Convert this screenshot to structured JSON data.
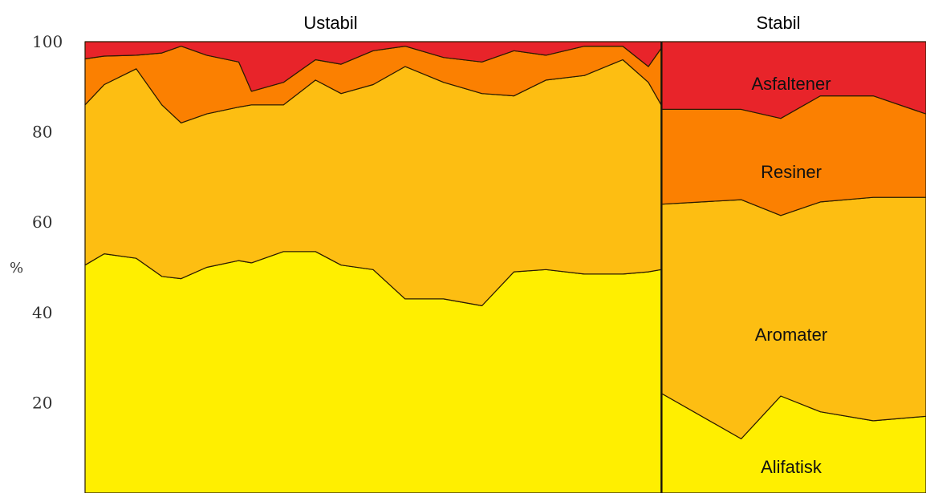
{
  "chart_data": {
    "type": "area",
    "stacked": true,
    "ylabel": "%",
    "ylim": [
      0,
      100
    ],
    "yticks": [
      20,
      40,
      60,
      80,
      100
    ],
    "groups": [
      "Ustabil",
      "Stabil"
    ],
    "series": [
      {
        "name": "Alifatisk",
        "color": "#FFEF00"
      },
      {
        "name": "Aromater",
        "color": "#FDBE12"
      },
      {
        "name": "Resiner",
        "color": "#FB8001"
      },
      {
        "name": "Asfaltener",
        "color": "#E8242A"
      }
    ],
    "data": [
      {
        "group": "Ustabil",
        "x": 0,
        "Alifatisk": 50.5,
        "Aromater": 35.5,
        "Resiner": 10.2,
        "Asfaltener": 3.8
      },
      {
        "group": "Ustabil",
        "x": 0.03,
        "Alifatisk": 53.0,
        "Aromater": 37.5,
        "Resiner": 6.3,
        "Asfaltener": 3.2
      },
      {
        "group": "Ustabil",
        "x": 0.08,
        "Alifatisk": 52.0,
        "Aromater": 42.0,
        "Resiner": 3.0,
        "Asfaltener": 3.0
      },
      {
        "group": "Ustabil",
        "x": 0.12,
        "Alifatisk": 48.0,
        "Aromater": 38.0,
        "Resiner": 11.5,
        "Asfaltener": 2.5
      },
      {
        "group": "Ustabil",
        "x": 0.15,
        "Alifatisk": 47.5,
        "Aromater": 34.5,
        "Resiner": 17.0,
        "Asfaltener": 1.0
      },
      {
        "group": "Ustabil",
        "x": 0.19,
        "Alifatisk": 50.0,
        "Aromater": 34.0,
        "Resiner": 13.0,
        "Asfaltener": 3.0
      },
      {
        "group": "Ustabil",
        "x": 0.24,
        "Alifatisk": 51.5,
        "Aromater": 34.0,
        "Resiner": 10.0,
        "Asfaltener": 4.5
      },
      {
        "group": "Ustabil",
        "x": 0.26,
        "Alifatisk": 51.0,
        "Aromater": 35.0,
        "Resiner": 3.0,
        "Asfaltener": 11.0
      },
      {
        "group": "Ustabil",
        "x": 0.31,
        "Alifatisk": 53.5,
        "Aromater": 32.5,
        "Resiner": 5.0,
        "Asfaltener": 9.0
      },
      {
        "group": "Ustabil",
        "x": 0.36,
        "Alifatisk": 53.5,
        "Aromater": 38.0,
        "Resiner": 4.5,
        "Asfaltener": 4.0
      },
      {
        "group": "Ustabil",
        "x": 0.4,
        "Alifatisk": 50.5,
        "Aromater": 38.0,
        "Resiner": 6.5,
        "Asfaltener": 5.0
      },
      {
        "group": "Ustabil",
        "x": 0.45,
        "Alifatisk": 49.5,
        "Aromater": 41.0,
        "Resiner": 7.5,
        "Asfaltener": 2.0
      },
      {
        "group": "Ustabil",
        "x": 0.5,
        "Alifatisk": 43.0,
        "Aromater": 51.5,
        "Resiner": 4.5,
        "Asfaltener": 1.0
      },
      {
        "group": "Ustabil",
        "x": 0.56,
        "Alifatisk": 43.0,
        "Aromater": 48.0,
        "Resiner": 5.5,
        "Asfaltener": 3.5
      },
      {
        "group": "Ustabil",
        "x": 0.62,
        "Alifatisk": 41.5,
        "Aromater": 47.0,
        "Resiner": 7.0,
        "Asfaltener": 4.5
      },
      {
        "group": "Ustabil",
        "x": 0.67,
        "Alifatisk": 49.0,
        "Aromater": 39.0,
        "Resiner": 10.0,
        "Asfaltener": 2.0
      },
      {
        "group": "Ustabil",
        "x": 0.72,
        "Alifatisk": 49.5,
        "Aromater": 42.0,
        "Resiner": 5.5,
        "Asfaltener": 3.0
      },
      {
        "group": "Ustabil",
        "x": 0.78,
        "Alifatisk": 48.5,
        "Aromater": 44.0,
        "Resiner": 6.5,
        "Asfaltener": 1.0
      },
      {
        "group": "Ustabil",
        "x": 0.84,
        "Alifatisk": 48.5,
        "Aromater": 47.5,
        "Resiner": 3.0,
        "Asfaltener": 1.0
      },
      {
        "group": "Ustabil",
        "x": 0.88,
        "Alifatisk": 49.0,
        "Aromater": 42.0,
        "Resiner": 3.5,
        "Asfaltener": 5.5
      },
      {
        "group": "Ustabil",
        "x": 0.9,
        "Alifatisk": 49.5,
        "Aromater": 36.5,
        "Resiner": 12.5,
        "Asfaltener": 1.5
      },
      {
        "group": "Stabil",
        "x": 0,
        "Alifatisk": 22.0,
        "Aromater": 42.0,
        "Resiner": 21.0,
        "Asfaltener": 15.0
      },
      {
        "group": "Stabil",
        "x": 0.3,
        "Alifatisk": 12.0,
        "Aromater": 53.0,
        "Resiner": 20.0,
        "Asfaltener": 15.0
      },
      {
        "group": "Stabil",
        "x": 0.45,
        "Alifatisk": 21.5,
        "Aromater": 40.0,
        "Resiner": 21.5,
        "Asfaltener": 17.0
      },
      {
        "group": "Stabil",
        "x": 0.6,
        "Alifatisk": 18.0,
        "Aromater": 46.5,
        "Resiner": 23.5,
        "Asfaltener": 12.0
      },
      {
        "group": "Stabil",
        "x": 0.8,
        "Alifatisk": 16.0,
        "Aromater": 49.5,
        "Resiner": 22.5,
        "Asfaltener": 12.0
      },
      {
        "group": "Stabil",
        "x": 1,
        "Alifatisk": 17.0,
        "Aromater": 48.5,
        "Resiner": 18.5,
        "Asfaltener": 16.0
      }
    ]
  }
}
